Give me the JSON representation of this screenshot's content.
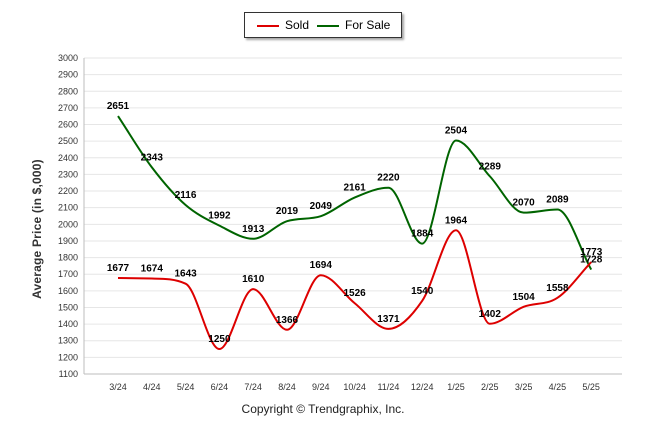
{
  "legend": {
    "sold_label": "Sold",
    "forsale_label": "For Sale"
  },
  "colors": {
    "sold": "#dd0000",
    "forsale": "#006400",
    "grid": "#e6e6e6"
  },
  "copyright": "Copyright © Trendgraphix, Inc.",
  "chart_data": {
    "type": "line",
    "ylabel": "Average Price (in $,000)",
    "xlabel": "",
    "ylim": [
      1100,
      3000
    ],
    "yticks": [
      1100,
      1200,
      1300,
      1400,
      1500,
      1600,
      1700,
      1800,
      1900,
      2000,
      2100,
      2200,
      2300,
      2400,
      2500,
      2600,
      2700,
      2800,
      2900,
      3000
    ],
    "categories": [
      "3/24",
      "4/24",
      "5/24",
      "6/24",
      "7/24",
      "8/24",
      "9/24",
      "10/24",
      "11/24",
      "12/24",
      "1/25",
      "2/25",
      "3/25",
      "4/25",
      "5/25"
    ],
    "grid": true,
    "legend_position": "top-center",
    "series": [
      {
        "name": "Sold",
        "color": "#dd0000",
        "values": [
          1677,
          1674,
          1643,
          1250,
          1610,
          1366,
          1694,
          1526,
          1371,
          1540,
          1964,
          1402,
          1504,
          1558,
          1773
        ]
      },
      {
        "name": "For Sale",
        "color": "#006400",
        "values": [
          2651,
          2343,
          2116,
          1992,
          1913,
          2019,
          2049,
          2161,
          2220,
          1884,
          2504,
          2289,
          2070,
          2089,
          1728
        ]
      }
    ]
  }
}
